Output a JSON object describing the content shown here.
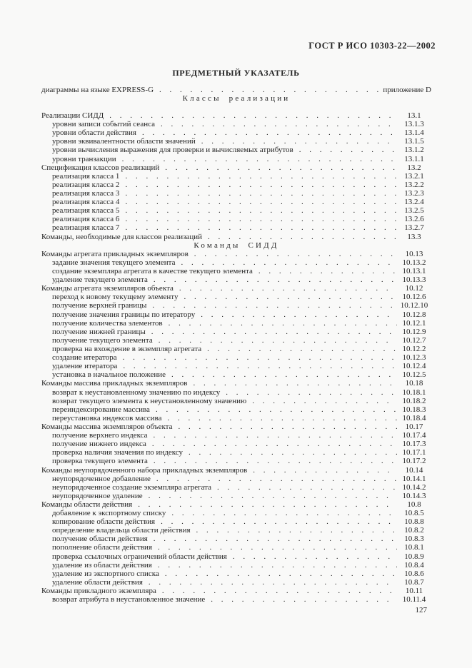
{
  "page": {
    "header": "ГОСТ Р ИСО 10303-22—2002",
    "title": "ПРЕДМЕТНЫЙ УКАЗАТЕЛЬ",
    "page_number": "127",
    "background_color": "#f9f9f8",
    "text_color": "#262626"
  },
  "index": {
    "rows": [
      {
        "type": "entry",
        "indent": 0,
        "label": "диаграммы на языке EXPRESS-G",
        "ref": "приложение D"
      },
      {
        "type": "heading",
        "label": "Классы реализации"
      },
      {
        "type": "spacer"
      },
      {
        "type": "entry",
        "indent": 0,
        "label": "Реализации СИДД",
        "ref": "13.1"
      },
      {
        "type": "entry",
        "indent": 1,
        "label": "уровни записи событий сеанса",
        "ref": "13.1.3"
      },
      {
        "type": "entry",
        "indent": 1,
        "label": "уровни области действия",
        "ref": "13.1.4"
      },
      {
        "type": "entry",
        "indent": 1,
        "label": "уровни эквивалентности области значений",
        "ref": "13.1.5"
      },
      {
        "type": "entry",
        "indent": 1,
        "label": "уровни вычисления выражения для проверки и вычисляемых атрибутов",
        "ref": "13.1.2"
      },
      {
        "type": "entry",
        "indent": 1,
        "label": "уровни транзакции",
        "ref": "13.1.1"
      },
      {
        "type": "entry",
        "indent": 0,
        "label": "Спецификация классов реализаций",
        "ref": "13.2"
      },
      {
        "type": "entry",
        "indent": 1,
        "label": "реализация класса 1",
        "ref": "13.2.1"
      },
      {
        "type": "entry",
        "indent": 1,
        "label": "реализация класса 2",
        "ref": "13.2.2"
      },
      {
        "type": "entry",
        "indent": 1,
        "label": "реализация класса 3",
        "ref": "13.2.3"
      },
      {
        "type": "entry",
        "indent": 1,
        "label": "реализация класса 4",
        "ref": "13.2.4"
      },
      {
        "type": "entry",
        "indent": 1,
        "label": "реализация класса 5",
        "ref": "13.2.5"
      },
      {
        "type": "entry",
        "indent": 1,
        "label": "реализация класса 6",
        "ref": "13.2.6"
      },
      {
        "type": "entry",
        "indent": 1,
        "label": "реализация класса 7",
        "ref": "13.2.7"
      },
      {
        "type": "entry",
        "indent": 0,
        "label": "Команды, необходимые для классов реализаций",
        "ref": "13.3"
      },
      {
        "type": "heading",
        "label": "Команды СИДД"
      },
      {
        "type": "entry",
        "indent": 0,
        "label": "Команды агрегата прикладных экземпляров",
        "ref": "10.13"
      },
      {
        "type": "entry",
        "indent": 1,
        "label": "задание значения текущего элемента",
        "ref": "10.13.2"
      },
      {
        "type": "entry",
        "indent": 1,
        "label": "создание экземпляра агрегата в качестве текущего элемента",
        "ref": "10.13.1"
      },
      {
        "type": "entry",
        "indent": 1,
        "label": "удаление текущего элемента",
        "ref": "10.13.3"
      },
      {
        "type": "entry",
        "indent": 0,
        "label": "Команды агрегата экземпляров объекта",
        "ref": "10.12"
      },
      {
        "type": "entry",
        "indent": 1,
        "label": "переход к новому текущему элементу",
        "ref": "10.12.6"
      },
      {
        "type": "entry",
        "indent": 1,
        "label": "получение верхней границы",
        "ref": "10.12.10"
      },
      {
        "type": "entry",
        "indent": 1,
        "label": "получение значения границы по итератору",
        "ref": "10.12.8"
      },
      {
        "type": "entry",
        "indent": 1,
        "label": "получение количества элементов",
        "ref": "10.12.1"
      },
      {
        "type": "entry",
        "indent": 1,
        "label": "получение нижней границы",
        "ref": "10.12.9"
      },
      {
        "type": "entry",
        "indent": 1,
        "label": "получение текущего элемента",
        "ref": "10.12.7"
      },
      {
        "type": "entry",
        "indent": 1,
        "label": "проверка на вхождение в экземпляр агрегата",
        "ref": "10.12.2"
      },
      {
        "type": "entry",
        "indent": 1,
        "label": "создание итератора",
        "ref": "10.12.3"
      },
      {
        "type": "entry",
        "indent": 1,
        "label": "удаление итератора",
        "ref": "10.12.4"
      },
      {
        "type": "entry",
        "indent": 1,
        "label": "установка в начальное положение",
        "ref": "10.12.5"
      },
      {
        "type": "entry",
        "indent": 0,
        "label": "Команды массива прикладных экземпляров",
        "ref": "10.18"
      },
      {
        "type": "entry",
        "indent": 1,
        "label": "возврат к неустановленному значению по индексу",
        "ref": "10.18.1"
      },
      {
        "type": "entry",
        "indent": 1,
        "label": "возврат текущего элемента к неустановленному значению",
        "ref": "10.18.2"
      },
      {
        "type": "entry",
        "indent": 1,
        "label": "переиндексирование массива",
        "ref": "10.18.3"
      },
      {
        "type": "entry",
        "indent": 1,
        "label": "переустановка индексов массива",
        "ref": "10.18.4"
      },
      {
        "type": "entry",
        "indent": 0,
        "label": "Команды массива экземпляров объекта",
        "ref": "10.17"
      },
      {
        "type": "entry",
        "indent": 1,
        "label": "получение верхнего индекса",
        "ref": "10.17.4"
      },
      {
        "type": "entry",
        "indent": 1,
        "label": "получение нижнего индекса",
        "ref": "10.17.3"
      },
      {
        "type": "entry",
        "indent": 1,
        "label": "проверка наличия значения по индексу",
        "ref": "10.17.1"
      },
      {
        "type": "entry",
        "indent": 1,
        "label": "проверка текущего элемента",
        "ref": "10.17.2"
      },
      {
        "type": "entry",
        "indent": 0,
        "label": "Команды неупорядоченного набора прикладных экземпляров",
        "ref": "10.14"
      },
      {
        "type": "entry",
        "indent": 1,
        "label": "неупорядоченное добавление",
        "ref": "10.14.1"
      },
      {
        "type": "entry",
        "indent": 1,
        "label": "неупорядоченное создание экземпляра агрегата",
        "ref": "10.14.2"
      },
      {
        "type": "entry",
        "indent": 1,
        "label": "неупорядоченное удаление",
        "ref": "10.14.3"
      },
      {
        "type": "entry",
        "indent": 0,
        "label": "Команды области действия",
        "ref": "10.8"
      },
      {
        "type": "entry",
        "indent": 1,
        "label": "добавление к экспортному списку",
        "ref": "10.8.5"
      },
      {
        "type": "entry",
        "indent": 1,
        "label": "копирование области действия",
        "ref": "10.8.8"
      },
      {
        "type": "entry",
        "indent": 1,
        "label": "определение владельца области действия",
        "ref": "10.8.2"
      },
      {
        "type": "entry",
        "indent": 1,
        "label": "получение области действия",
        "ref": "10.8.3"
      },
      {
        "type": "entry",
        "indent": 1,
        "label": "пополнение области действия",
        "ref": "10.8.1"
      },
      {
        "type": "entry",
        "indent": 1,
        "label": "проверка ссылочных ограничений области действия",
        "ref": "10.8.9"
      },
      {
        "type": "entry",
        "indent": 1,
        "label": "удаление из области действия",
        "ref": "10.8.4"
      },
      {
        "type": "entry",
        "indent": 1,
        "label": "удаление из экспортного списка",
        "ref": "10.8.6"
      },
      {
        "type": "entry",
        "indent": 1,
        "label": "удаление области действия",
        "ref": "10.8.7"
      },
      {
        "type": "entry",
        "indent": 0,
        "label": "Команды прикладного экземпляра",
        "ref": "10.11"
      },
      {
        "type": "entry",
        "indent": 1,
        "label": "возврат атрибута в неустановленное значение",
        "ref": "10.11.4"
      }
    ]
  }
}
